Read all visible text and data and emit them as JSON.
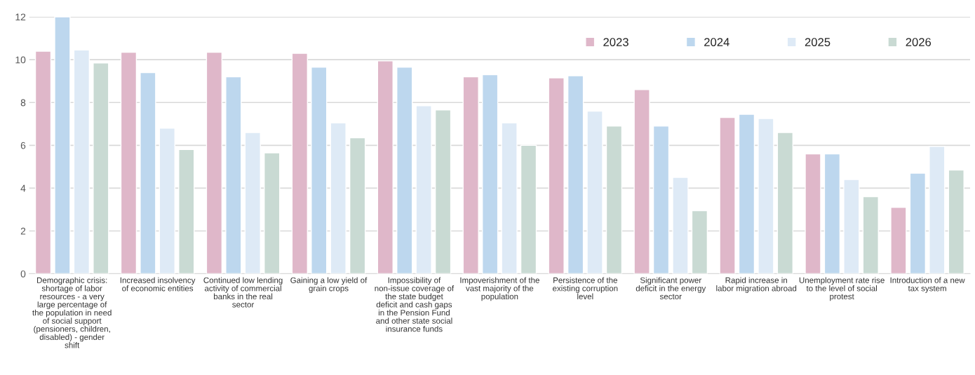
{
  "chart_data": {
    "type": "bar",
    "categories": [
      "Demographic crisis: shortage of labor resources - a very large percentage of the population in need of social support (pensioners, children, disabled) - gender shift",
      "Increased insolvency of economic entities",
      "Continued low lending activity of commercial banks in the real sector",
      "Gaining a low yield of grain crops",
      "Impossibility of non-issue coverage of the state budget deficit and cash gaps in the Pension Fund and other state social insurance funds",
      "Impoverishment of the vast majority of the population",
      "Persistence of the existing corruption level",
      "Significant power deficit in the energy sector",
      "Rapid increase in labor migration abroad",
      "Unemployment rate rise to the level of social protest",
      "Introduction of a new tax system"
    ],
    "series": [
      {
        "name": "2023",
        "color": "#dfb7c9",
        "values": [
          10.4,
          10.35,
          10.35,
          10.3,
          9.95,
          9.2,
          9.15,
          8.6,
          7.3,
          5.6,
          3.1
        ]
      },
      {
        "name": "2024",
        "color": "#bdd7ee",
        "values": [
          12.0,
          9.4,
          9.2,
          9.65,
          9.65,
          9.3,
          9.25,
          6.9,
          7.45,
          5.6,
          4.7
        ]
      },
      {
        "name": "2025",
        "color": "#deeaf6",
        "values": [
          10.45,
          6.8,
          6.6,
          7.05,
          7.85,
          7.05,
          7.6,
          4.5,
          7.25,
          4.4,
          5.95
        ]
      },
      {
        "name": "2026",
        "color": "#c9dad3",
        "values": [
          9.85,
          5.8,
          5.65,
          6.35,
          7.65,
          6.0,
          6.9,
          2.95,
          6.6,
          3.6,
          4.85
        ]
      }
    ],
    "ylim": [
      0,
      12
    ],
    "yticks": [
      0,
      2,
      4,
      6,
      8,
      10,
      12
    ],
    "grid": "y",
    "legend": "top right"
  }
}
